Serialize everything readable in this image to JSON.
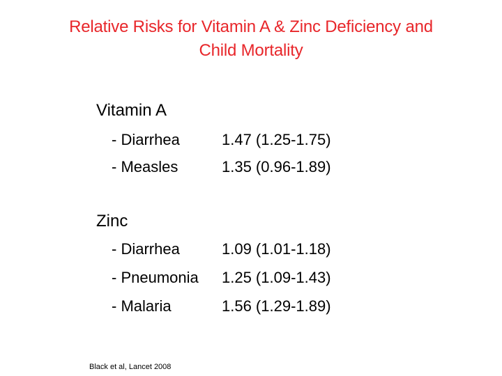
{
  "slide": {
    "title_line1": "Relative Risks for Vitamin A & Zinc Deficiency and",
    "title_line2": "Child Mortality",
    "title_color": "#e8262a",
    "groups": [
      {
        "label": "Vitamin A",
        "rows": [
          {
            "outcome": "- Diarrhea",
            "risk": "1.47 (1.25-1.75)"
          },
          {
            "outcome": "- Measles",
            "risk": "1.35 (0.96-1.89)"
          }
        ]
      },
      {
        "label": "Zinc",
        "rows": [
          {
            "outcome": "- Diarrhea",
            "risk": "1.09 (1.01-1.18)"
          },
          {
            "outcome": "- Pneumonia",
            "risk": "1.25 (1.09-1.43)"
          },
          {
            "outcome": "- Malaria",
            "risk": "1.56 (1.29-1.89)"
          }
        ]
      }
    ],
    "citation": "Black et al, Lancet 2008"
  }
}
